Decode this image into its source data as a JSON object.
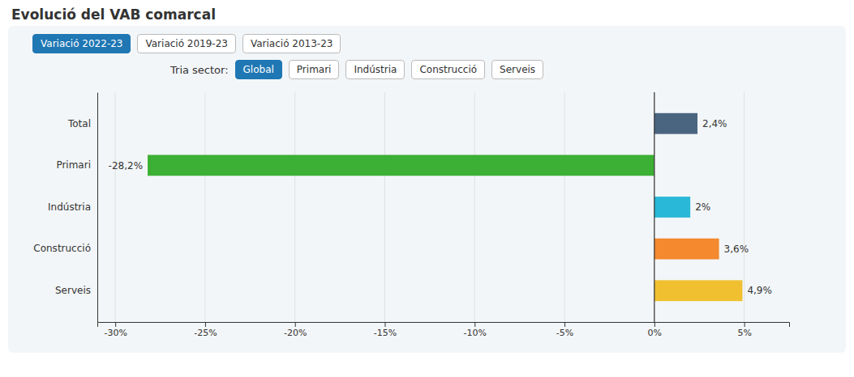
{
  "chart_data": {
    "type": "bar",
    "orientation": "horizontal",
    "title": "Evolució del VAB comarcal",
    "categories": [
      "Total",
      "Primari",
      "Indústria",
      "Construcció",
      "Serveis"
    ],
    "values": [
      2.4,
      -28.2,
      2.0,
      3.6,
      4.9
    ],
    "value_labels": [
      "2,4%",
      "-28,2%",
      "2%",
      "3,6%",
      "4,9%"
    ],
    "colors": [
      "#4a6580",
      "#3cb034",
      "#29b8d8",
      "#f4892e",
      "#f0c030"
    ],
    "xlim": [
      -31,
      7.5
    ],
    "xticks": [
      {
        "value": -30,
        "label": "-30%"
      },
      {
        "value": -25,
        "label": "-25%"
      },
      {
        "value": -20,
        "label": "-20%"
      },
      {
        "value": -15,
        "label": "-15%"
      },
      {
        "value": -10,
        "label": "-10%"
      },
      {
        "value": -5,
        "label": "-5%"
      },
      {
        "value": 0,
        "label": "0%"
      },
      {
        "value": 5,
        "label": "5%"
      }
    ],
    "grid": true,
    "data_labels": true
  },
  "tabs": {
    "labels": [
      "Variació 2022-23",
      "Variació 2019-23",
      "Variació 2013-23"
    ],
    "active": 0
  },
  "sector_selector": {
    "label": "Tria sector:",
    "buttons": [
      "Global",
      "Primari",
      "Indústria",
      "Construcció",
      "Serveis"
    ],
    "active": 0
  }
}
